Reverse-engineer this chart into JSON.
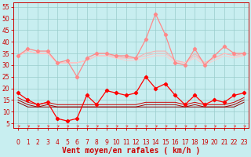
{
  "title": "",
  "xlabel": "Vent moyen/en rafales ( km/h )",
  "bg_color": "#c8eef0",
  "grid_color": "#99cccc",
  "x_ticks": [
    0,
    1,
    2,
    3,
    4,
    5,
    6,
    7,
    8,
    9,
    10,
    11,
    12,
    13,
    14,
    15,
    16,
    17,
    18,
    19,
    20,
    21,
    22,
    23
  ],
  "y_ticks": [
    5,
    10,
    15,
    20,
    25,
    30,
    35,
    40,
    45,
    50,
    55
  ],
  "ylim": [
    3,
    57
  ],
  "xlim": [
    -0.5,
    23.5
  ],
  "series": [
    {
      "name": "gust_high",
      "color": "#ff8888",
      "lw": 0.9,
      "marker": "D",
      "ms": 2.2,
      "data": [
        34,
        37,
        36,
        36,
        31,
        32,
        25,
        33,
        35,
        35,
        34,
        34,
        33,
        41,
        52,
        43,
        31,
        30,
        37,
        30,
        34,
        38,
        35,
        35
      ]
    },
    {
      "name": "gust_mid1",
      "color": "#ffaaaa",
      "lw": 0.7,
      "marker": null,
      "ms": 0,
      "data": [
        34,
        36,
        35,
        35,
        31,
        31,
        31,
        32,
        34,
        34,
        34,
        33,
        33,
        35,
        36,
        36,
        32,
        31,
        35,
        31,
        33,
        35,
        34,
        35
      ]
    },
    {
      "name": "gust_mid2",
      "color": "#ffbbbb",
      "lw": 0.7,
      "marker": null,
      "ms": 0,
      "data": [
        34,
        36,
        35,
        35,
        31,
        31,
        31,
        32,
        34,
        34,
        33,
        33,
        33,
        34,
        35,
        35,
        32,
        31,
        34,
        31,
        33,
        35,
        34,
        34
      ]
    },
    {
      "name": "gust_low",
      "color": "#ffcccc",
      "lw": 0.7,
      "marker": null,
      "ms": 0,
      "data": [
        34,
        36,
        35,
        35,
        31,
        31,
        31,
        32,
        34,
        34,
        33,
        32,
        32,
        33,
        34,
        34,
        31,
        31,
        33,
        30,
        32,
        34,
        33,
        34
      ]
    },
    {
      "name": "wind_high",
      "color": "#ff0000",
      "lw": 0.9,
      "marker": "D",
      "ms": 2.2,
      "data": [
        18,
        15,
        13,
        14,
        7,
        6,
        7,
        17,
        13,
        19,
        18,
        17,
        18,
        25,
        20,
        22,
        17,
        13,
        17,
        13,
        15,
        14,
        17,
        18
      ]
    },
    {
      "name": "wind_mid1",
      "color": "#cc0000",
      "lw": 0.7,
      "marker": null,
      "ms": 0,
      "data": [
        16,
        14,
        13,
        14,
        13,
        13,
        13,
        13,
        13,
        13,
        13,
        13,
        13,
        14,
        14,
        14,
        14,
        13,
        14,
        13,
        13,
        13,
        14,
        16
      ]
    },
    {
      "name": "wind_mid2",
      "color": "#aa0000",
      "lw": 0.7,
      "marker": null,
      "ms": 0,
      "data": [
        15,
        13,
        12,
        13,
        12,
        12,
        12,
        12,
        12,
        12,
        12,
        12,
        12,
        13,
        13,
        13,
        13,
        12,
        13,
        12,
        12,
        12,
        13,
        15
      ]
    },
    {
      "name": "wind_low",
      "color": "#880000",
      "lw": 0.7,
      "marker": null,
      "ms": 0,
      "data": [
        14,
        12,
        12,
        12,
        12,
        12,
        12,
        12,
        12,
        12,
        12,
        12,
        12,
        12,
        12,
        12,
        12,
        12,
        12,
        12,
        12,
        12,
        12,
        14
      ]
    }
  ],
  "arrow_color": "#ff3333",
  "xlabel_color": "#cc0000",
  "xlabel_fontsize": 7,
  "tick_color": "#cc0000",
  "tick_fontsize": 5.5,
  "ytick_fontsize": 5.5,
  "spine_color": "#cc0000"
}
